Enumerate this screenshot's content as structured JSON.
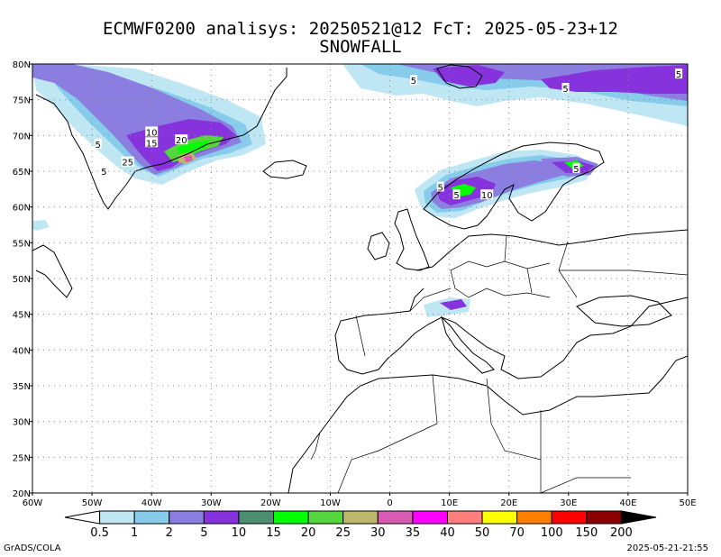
{
  "title_line1": "ECMWF0200 analisys: 20250521@12 FcT: 2025-05-23+12",
  "title_line2": "SNOWFALL",
  "footer_left": "GrADS/COLA",
  "footer_right": "2025-05-21-21:55",
  "map": {
    "lon_range": [
      -60,
      50
    ],
    "lat_range": [
      20,
      80
    ],
    "lat_labels": [
      "80N",
      "75N",
      "70N",
      "65N",
      "60N",
      "55N",
      "50N",
      "45N",
      "40N",
      "35N",
      "30N",
      "25N",
      "20N"
    ],
    "lat_values": [
      80,
      75,
      70,
      65,
      60,
      55,
      50,
      45,
      40,
      35,
      30,
      25,
      20
    ],
    "lon_labels": [
      "60W",
      "50W",
      "40W",
      "30W",
      "20W",
      "10W",
      "0",
      "10E",
      "20E",
      "30E",
      "40E",
      "50E"
    ],
    "lon_values": [
      -60,
      -50,
      -40,
      -30,
      -20,
      -10,
      0,
      10,
      20,
      30,
      40,
      50
    ],
    "grid": true,
    "contour_labels": [
      {
        "text": "5",
        "lon": -49,
        "lat": 68.8
      },
      {
        "text": "10",
        "lon": -40,
        "lat": 70.5
      },
      {
        "text": "15",
        "lon": -40,
        "lat": 69.0
      },
      {
        "text": "20",
        "lon": -35,
        "lat": 69.4
      },
      {
        "text": "25",
        "lon": -44,
        "lat": 66.3
      },
      {
        "text": "5",
        "lon": -48,
        "lat": 65.0
      },
      {
        "text": "5",
        "lon": 4,
        "lat": 77.7
      },
      {
        "text": "5",
        "lon": 29.5,
        "lat": 76.6
      },
      {
        "text": "5",
        "lon": 48.5,
        "lat": 78.6
      },
      {
        "text": "5",
        "lon": 8.5,
        "lat": 62.8
      },
      {
        "text": "5",
        "lon": 11.2,
        "lat": 61.7
      },
      {
        "text": "10",
        "lon": 16.3,
        "lat": 61.7
      },
      {
        "text": "5",
        "lon": 31.3,
        "lat": 65.4
      }
    ]
  },
  "colorbar": {
    "colors": [
      "#ffffff",
      "#bfe6f3",
      "#87ccea",
      "#8c7ee0",
      "#8733dd",
      "#4b8f70",
      "#00ff00",
      "#55d63c",
      "#bdb76b",
      "#d85cb4",
      "#ff00ff",
      "#ff7f7f",
      "#ffff00",
      "#ff7f00",
      "#ff0000",
      "#8b0000",
      "#000000"
    ],
    "labels": [
      "0.5",
      "1",
      "2",
      "5",
      "10",
      "15",
      "20",
      "25",
      "30",
      "35",
      "40",
      "50",
      "70",
      "100",
      "150",
      "200"
    ]
  }
}
